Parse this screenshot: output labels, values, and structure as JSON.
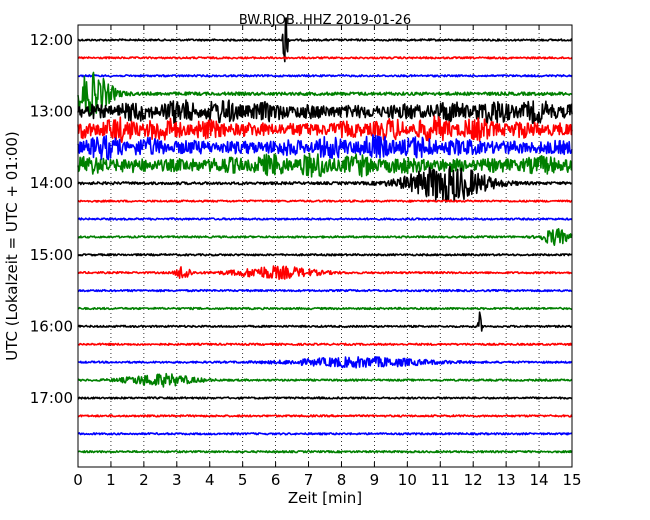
{
  "chart_data": {
    "type": "line",
    "subtype": "seismic-dayplot",
    "title": "BW.RJOB..HHZ 2019-01-26",
    "xlabel": "Zeit  [min]",
    "ylabel": "UTC (Lokalzeit = UTC + 01:00)",
    "xlim": [
      0,
      15
    ],
    "x_ticks": [
      "0",
      "1",
      "2",
      "3",
      "4",
      "5",
      "6",
      "7",
      "8",
      "9",
      "10",
      "11",
      "12",
      "13",
      "14",
      "15"
    ],
    "y_tick_labels": [
      "12:00",
      "13:00",
      "14:00",
      "15:00",
      "16:00",
      "17:00"
    ],
    "x_grid": "dotted",
    "trace_interval_minutes": 15,
    "color_cycle": [
      "#000000",
      "#ff0000",
      "#0000ff",
      "#008000"
    ],
    "traces": [
      {
        "start": "12:00",
        "color": "#000000",
        "activity": "quiet",
        "events": [
          {
            "x": 6.3,
            "amp": 1.0,
            "dur": 0.06
          }
        ]
      },
      {
        "start": "12:15",
        "color": "#ff0000",
        "activity": "quiet"
      },
      {
        "start": "12:30",
        "color": "#0000ff",
        "activity": "quiet"
      },
      {
        "start": "12:45",
        "color": "#008000",
        "activity": "noisy",
        "events": [
          {
            "x": 0.4,
            "amp": 0.5,
            "dur": 0.6
          }
        ]
      },
      {
        "start": "13:00",
        "color": "#000000",
        "activity": "strong"
      },
      {
        "start": "13:15",
        "color": "#ff0000",
        "activity": "strong"
      },
      {
        "start": "13:30",
        "color": "#0000ff",
        "activity": "strong"
      },
      {
        "start": "13:45",
        "color": "#008000",
        "activity": "strong"
      },
      {
        "start": "14:00",
        "color": "#000000",
        "activity": "moderate",
        "events": [
          {
            "x": 11.2,
            "amp": 0.45,
            "dur": 1.2
          }
        ]
      },
      {
        "start": "14:15",
        "color": "#ff0000",
        "activity": "quiet"
      },
      {
        "start": "14:30",
        "color": "#0000ff",
        "activity": "quiet"
      },
      {
        "start": "14:45",
        "color": "#008000",
        "activity": "quiet",
        "events": [
          {
            "x": 14.5,
            "amp": 0.2,
            "dur": 0.4
          }
        ]
      },
      {
        "start": "15:00",
        "color": "#000000",
        "activity": "quiet"
      },
      {
        "start": "15:15",
        "color": "#ff0000",
        "activity": "quiet",
        "events": [
          {
            "x": 6.0,
            "amp": 0.15,
            "dur": 1.2
          },
          {
            "x": 3.2,
            "amp": 0.2,
            "dur": 0.2
          }
        ]
      },
      {
        "start": "15:30",
        "color": "#0000ff",
        "activity": "quiet"
      },
      {
        "start": "15:45",
        "color": "#008000",
        "activity": "quiet"
      },
      {
        "start": "16:00",
        "color": "#000000",
        "activity": "quiet",
        "events": [
          {
            "x": 12.2,
            "amp": 0.35,
            "dur": 0.05
          }
        ]
      },
      {
        "start": "16:15",
        "color": "#ff0000",
        "activity": "quiet"
      },
      {
        "start": "16:30",
        "color": "#0000ff",
        "activity": "quiet",
        "events": [
          {
            "x": 8.6,
            "amp": 0.12,
            "dur": 2.0
          }
        ]
      },
      {
        "start": "16:45",
        "color": "#008000",
        "activity": "quiet",
        "events": [
          {
            "x": 2.5,
            "amp": 0.15,
            "dur": 1.0
          }
        ]
      },
      {
        "start": "17:00",
        "color": "#000000",
        "activity": "quiet"
      },
      {
        "start": "17:15",
        "color": "#ff0000",
        "activity": "quiet"
      },
      {
        "start": "17:30",
        "color": "#0000ff",
        "activity": "quiet"
      },
      {
        "start": "17:45",
        "color": "#008000",
        "activity": "quiet"
      }
    ]
  }
}
